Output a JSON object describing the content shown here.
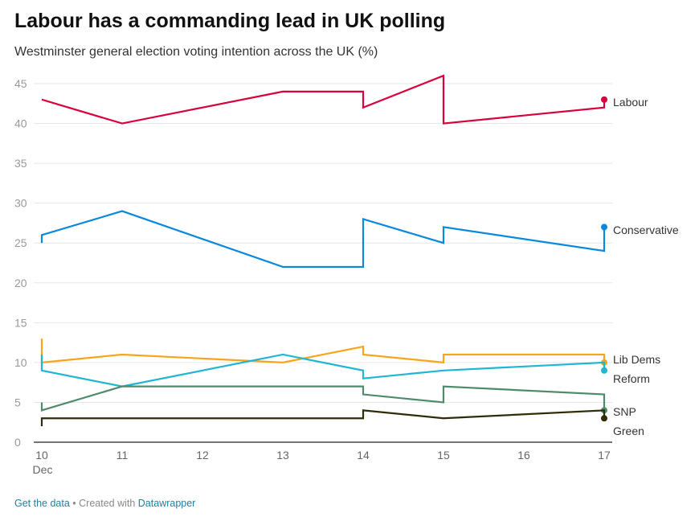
{
  "title": "Labour has a commanding lead in UK polling",
  "subtitle": "Westminster general election voting intention across the UK (%)",
  "footer": {
    "get_data": "Get the data",
    "separator": " • Created with ",
    "datawrapper": "Datawrapper"
  },
  "chart_data": {
    "type": "line",
    "x_ticks": [
      "10",
      "11",
      "12",
      "13",
      "14",
      "15",
      "16",
      "17"
    ],
    "x_sublabel": "Dec",
    "xlim": [
      10,
      17
    ],
    "ylim": [
      0,
      45
    ],
    "y_ticks": [
      0,
      5,
      10,
      15,
      20,
      25,
      30,
      35,
      40,
      45
    ],
    "grid": true,
    "legend": "direct labels at right",
    "series": [
      {
        "name": "Labour",
        "color": "#d8003d",
        "points": [
          [
            10,
            43
          ],
          [
            11,
            40
          ],
          [
            13,
            44
          ],
          [
            14,
            44
          ],
          [
            14,
            42
          ],
          [
            15,
            46
          ],
          [
            15,
            40
          ],
          [
            17,
            42
          ],
          [
            17,
            43
          ]
        ]
      },
      {
        "name": "Conservative",
        "color": "#0a88dc",
        "points": [
          [
            10,
            25
          ],
          [
            10,
            26
          ],
          [
            11,
            29
          ],
          [
            13,
            22
          ],
          [
            14,
            22
          ],
          [
            14,
            28
          ],
          [
            15,
            25
          ],
          [
            15,
            27
          ],
          [
            17,
            24
          ],
          [
            17,
            27
          ]
        ]
      },
      {
        "name": "Lib Dems",
        "color": "#f8a51c",
        "points": [
          [
            10,
            13
          ],
          [
            10,
            10
          ],
          [
            11,
            11
          ],
          [
            13,
            10
          ],
          [
            14,
            12
          ],
          [
            14,
            11
          ],
          [
            15,
            10
          ],
          [
            15,
            11
          ],
          [
            17,
            11
          ],
          [
            17,
            10
          ]
        ]
      },
      {
        "name": "Reform",
        "color": "#1fb6d2",
        "points": [
          [
            10,
            11
          ],
          [
            10,
            9
          ],
          [
            11,
            7
          ],
          [
            13,
            11
          ],
          [
            14,
            9
          ],
          [
            14,
            8
          ],
          [
            15,
            9
          ],
          [
            17,
            10
          ],
          [
            17,
            9
          ]
        ]
      },
      {
        "name": "SNP",
        "color": "#4f8b6b",
        "points": [
          [
            10,
            5
          ],
          [
            10,
            4
          ],
          [
            11,
            7
          ],
          [
            14,
            7
          ],
          [
            14,
            6
          ],
          [
            15,
            5
          ],
          [
            15,
            7
          ],
          [
            17,
            6
          ],
          [
            17,
            4
          ]
        ]
      },
      {
        "name": "Green",
        "color": "#2e2d08",
        "points": [
          [
            10,
            2
          ],
          [
            10,
            3
          ],
          [
            14,
            3
          ],
          [
            14,
            4
          ],
          [
            15,
            3
          ],
          [
            17,
            4
          ],
          [
            17,
            3
          ]
        ]
      }
    ]
  }
}
